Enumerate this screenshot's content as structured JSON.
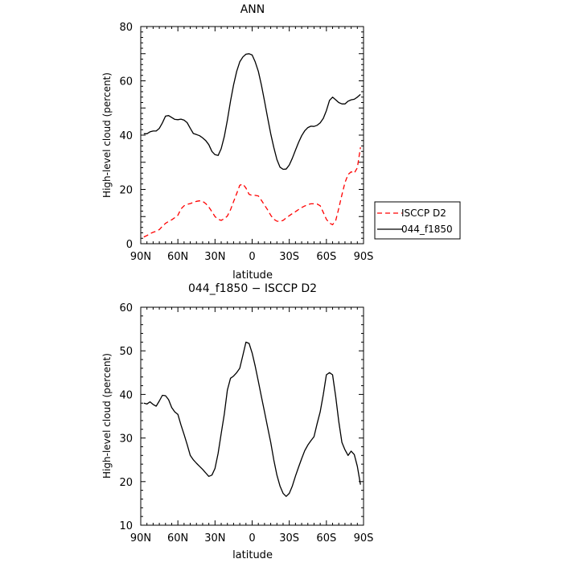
{
  "chart_data": [
    {
      "type": "line",
      "title": "ANN",
      "xlabel": "latitude",
      "ylabel": "High-level cloud (percent)",
      "xlim": [
        -90,
        90
      ],
      "ylim": [
        0,
        80
      ],
      "xticks": [
        -90,
        -60,
        -30,
        0,
        30,
        60,
        90
      ],
      "xtick_labels": [
        "90N",
        "60N",
        "30N",
        "0",
        "30S",
        "60S",
        "90S"
      ],
      "yticks": [
        0,
        20,
        40,
        60,
        80
      ],
      "ytick_labels": [
        "0",
        "20",
        "40",
        "60",
        "80"
      ],
      "legend_position": "right",
      "series": [
        {
          "name": "ISCCP D2",
          "color": "#ff0000",
          "dash": "dashed",
          "x": [
            -87.5,
            -85,
            -82.5,
            -80,
            -77.5,
            -75,
            -72.5,
            -70,
            -67.5,
            -65,
            -62.5,
            -60,
            -57.5,
            -55,
            -52.5,
            -50,
            -47.5,
            -45,
            -42.5,
            -40,
            -37.5,
            -35,
            -32.5,
            -30,
            -27.5,
            -25,
            -22.5,
            -20,
            -17.5,
            -15,
            -12.5,
            -10,
            -7.5,
            -5,
            -2.5,
            0,
            2.5,
            5,
            7.5,
            10,
            12.5,
            15,
            17.5,
            20,
            22.5,
            25,
            27.5,
            30,
            32.5,
            35,
            37.5,
            40,
            42.5,
            45,
            47.5,
            50,
            52.5,
            55,
            57.5,
            60,
            62.5,
            65,
            67.5,
            70,
            72.5,
            75,
            77.5,
            80,
            82.5,
            85,
            87.5
          ],
          "y": [
            2.5,
            3,
            3.7,
            4.2,
            4.6,
            5.2,
            6.4,
            7.5,
            8.2,
            8.8,
            9.6,
            10.5,
            12.8,
            14,
            14.5,
            14.8,
            15.2,
            15.6,
            15.8,
            15.6,
            14.8,
            13.5,
            11.8,
            10,
            9,
            8.6,
            9.2,
            10.2,
            12.5,
            15.5,
            18.5,
            21.5,
            22,
            20.5,
            18.2,
            17.8,
            17.8,
            17.6,
            16,
            14.2,
            12.5,
            10.5,
            9,
            8.3,
            8.2,
            8.6,
            9.5,
            10.3,
            11.1,
            11.8,
            12.6,
            13.3,
            13.9,
            14.4,
            14.7,
            14.7,
            14.6,
            14,
            11.5,
            9,
            7.6,
            7,
            8.5,
            13,
            18,
            22.5,
            25.5,
            26.5,
            26,
            28,
            35.5
          ]
        },
        {
          "name": "044_f1850",
          "color": "#000000",
          "dash": "solid",
          "x": [
            -87.5,
            -85,
            -82.5,
            -80,
            -77.5,
            -75,
            -72.5,
            -70,
            -67.5,
            -65,
            -62.5,
            -60,
            -57.5,
            -55,
            -52.5,
            -50,
            -47.5,
            -45,
            -42.5,
            -40,
            -37.5,
            -35,
            -32.5,
            -30,
            -27.5,
            -25,
            -22.5,
            -20,
            -17.5,
            -15,
            -12.5,
            -10,
            -7.5,
            -5,
            -2.5,
            0,
            2.5,
            5,
            7.5,
            10,
            12.5,
            15,
            17.5,
            20,
            22.5,
            25,
            27.5,
            30,
            32.5,
            35,
            37.5,
            40,
            42.5,
            45,
            47.5,
            50,
            52.5,
            55,
            57.5,
            60,
            62.5,
            65,
            67.5,
            70,
            72.5,
            75,
            77.5,
            80,
            82.5,
            85,
            87.5
          ],
          "y": [
            40.5,
            40.5,
            41.2,
            41.5,
            41.5,
            42.5,
            44.5,
            47,
            47.2,
            46.5,
            45.8,
            45.7,
            45.9,
            45.5,
            44.6,
            42.5,
            40.6,
            40.2,
            39.8,
            39,
            38,
            36.5,
            34,
            32.8,
            32.5,
            35,
            39.5,
            45.5,
            52.5,
            58.5,
            63.5,
            67,
            68.8,
            69.8,
            70,
            69.5,
            67,
            63.5,
            58.5,
            52.5,
            46.5,
            40.5,
            35.5,
            31,
            28.2,
            27.4,
            27.5,
            29,
            31.5,
            34.5,
            37.3,
            39.8,
            41.6,
            42.8,
            43.3,
            43.2,
            43.6,
            44.5,
            46.2,
            49,
            52.8,
            54,
            53,
            52,
            51.5,
            51.5,
            52.5,
            53,
            53.2,
            54,
            55
          ]
        }
      ]
    },
    {
      "type": "line",
      "title": "044_f1850 − ISCCP D2",
      "xlabel": "latitude",
      "ylabel": "High-level cloud (percent)",
      "xlim": [
        -90,
        90
      ],
      "ylim": [
        10,
        60
      ],
      "xticks": [
        -90,
        -60,
        -30,
        0,
        30,
        60,
        90
      ],
      "xtick_labels": [
        "90N",
        "60N",
        "30N",
        "0",
        "30S",
        "60S",
        "90S"
      ],
      "yticks": [
        10,
        20,
        30,
        40,
        50,
        60
      ],
      "ytick_labels": [
        "10",
        "20",
        "30",
        "40",
        "50",
        "60"
      ],
      "series": [
        {
          "color": "#000000",
          "dash": "solid",
          "x": [
            -87.5,
            -85,
            -82.5,
            -80,
            -77.5,
            -75,
            -72.5,
            -70,
            -67.5,
            -65,
            -62.5,
            -60,
            -57.5,
            -55,
            -52.5,
            -50,
            -47.5,
            -45,
            -42.5,
            -40,
            -37.5,
            -35,
            -32.5,
            -30,
            -27.5,
            -25,
            -22.5,
            -20,
            -17.5,
            -15,
            -12.5,
            -10,
            -7.5,
            -5,
            -2.5,
            0,
            2.5,
            5,
            7.5,
            10,
            12.5,
            15,
            17.5,
            20,
            22.5,
            25,
            27.5,
            30,
            32.5,
            35,
            37.5,
            40,
            42.5,
            45,
            47.5,
            50,
            52.5,
            55,
            57.5,
            60,
            62.5,
            65,
            67.5,
            70,
            72.5,
            75,
            77.5,
            80,
            82.5,
            85,
            87.5
          ],
          "y": [
            38,
            37.8,
            38.3,
            37.7,
            37.3,
            38.5,
            39.8,
            39.7,
            38.8,
            37,
            36,
            35.4,
            33,
            30.8,
            28.5,
            26,
            25,
            24.2,
            23.5,
            22.8,
            22,
            21.2,
            21.5,
            23,
            26.5,
            31,
            35.5,
            41,
            43.7,
            44.2,
            45,
            46,
            49,
            52,
            51.7,
            49.5,
            46.5,
            43,
            39.5,
            36,
            32.5,
            29,
            25,
            21.5,
            19,
            17.3,
            16.6,
            17.3,
            19,
            21.3,
            23.3,
            25.3,
            27.1,
            28.4,
            29.4,
            30.3,
            33.3,
            36,
            40,
            44.5,
            45,
            44.5,
            39.5,
            33.8,
            29,
            27.3,
            26,
            27,
            26.2,
            23.5,
            19.3
          ]
        }
      ]
    }
  ]
}
